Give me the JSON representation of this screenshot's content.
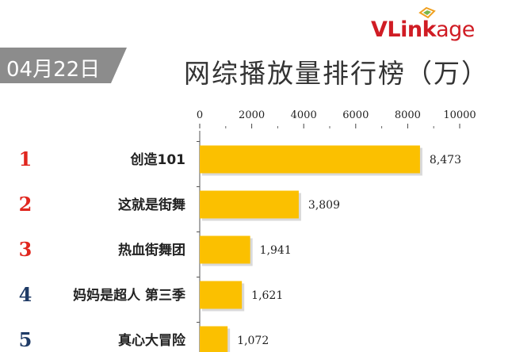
{
  "logo": {
    "text_v": "V",
    "text_l": "L",
    "text_ink": "ink",
    "text_age": "age"
  },
  "date_badge": "04月22日",
  "chart_data": {
    "type": "bar",
    "orientation": "horizontal",
    "title": "网综播放量排行榜（万）",
    "categories": [
      "创造101",
      "这就是街舞",
      "热血街舞团",
      "妈妈是超人 第三季",
      "真心大冒险"
    ],
    "ranks": [
      "1",
      "2",
      "3",
      "4",
      "5"
    ],
    "values": [
      8473,
      3809,
      1941,
      1621,
      1072
    ],
    "value_labels": [
      "8,473",
      "3,809",
      "1,941",
      "1,621",
      "1,072"
    ],
    "xlim": [
      0,
      10000
    ],
    "x_ticks": [
      "0",
      "2000",
      "4000",
      "6000",
      "8000",
      "10000"
    ],
    "grid": false,
    "colors": {
      "bar": "#fbc000",
      "bar_shadow": "#d9d9d9",
      "rank_top3": "#e0261e",
      "rank_other": "#1f3b66"
    }
  }
}
